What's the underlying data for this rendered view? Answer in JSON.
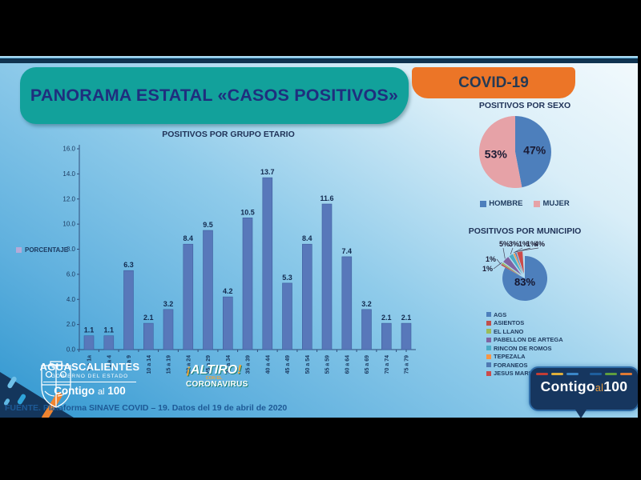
{
  "header": {
    "title": "PANORAMA ESTATAL «CASOS POSITIVOS»",
    "covid_label": "COVID-19"
  },
  "footer": {
    "source": "FUENTE. Plataforma SINAVE COVID – 19. Datos del 19 de abril de 2020"
  },
  "logos": {
    "gobierno": {
      "name": "AGUASCALIENTES",
      "subtitle": "GOBIERNO DEL ESTADO",
      "slogan_contigo": "Contigo",
      "slogan_al": "al",
      "slogan_100": "100"
    },
    "altiro": {
      "open_mark": "¡",
      "word": "ALTIRO",
      "close_mark": "!",
      "line2": "CON EL",
      "line3": "CORONAVIRUS"
    },
    "badge": {
      "contigo": "Contigo",
      "al": "al",
      "hundred": "100",
      "dash_colors": [
        "#c33d35",
        "#dfaf3a",
        "#3b87c8",
        "#1f5f9e",
        "#5f9e3f",
        "#df7a35"
      ]
    }
  },
  "chart_data": [
    {
      "type": "bar",
      "title": "POSITIVOS POR GRUPO ETARIO",
      "legend_label": "PORCENTAJE",
      "legend_swatch_color": "#b5aad8",
      "categories": [
        "< a 1a",
        "1 a 4",
        "5 a 9",
        "10 a 14",
        "15 a 19",
        "20 a 24",
        "25 a 29",
        "30 a 34",
        "35 a 39",
        "40 a 44",
        "45 a 49",
        "50 a 54",
        "55 a 59",
        "60 a 64",
        "65 a 69",
        "70 a 74",
        "75 a 79"
      ],
      "values": [
        1.1,
        1.1,
        6.3,
        2.1,
        3.2,
        8.4,
        9.5,
        4.2,
        10.5,
        13.7,
        5.3,
        8.4,
        11.6,
        7.4,
        3.2,
        2.1,
        2.1
      ],
      "xlabel": "",
      "ylabel": "",
      "ylim": [
        0,
        16
      ],
      "ytick_step": 2,
      "grid": false,
      "bar_color": "#5878ba",
      "bar_edge_color": "#3f5f9e"
    },
    {
      "type": "pie",
      "title": "POSITIVOS POR SEXO",
      "legend_position": "bottom",
      "slices": [
        {
          "label": "HOMBRE",
          "value": 47,
          "display": "47%",
          "color": "#4d7fbc"
        },
        {
          "label": "MUJER",
          "value": 53,
          "display": "53%",
          "color": "#e6a2a7"
        }
      ]
    },
    {
      "type": "pie",
      "title": "POSITIVOS POR MUNICIPIO",
      "legend_position": "bottom",
      "slices": [
        {
          "label": "AGS",
          "value": 83,
          "display": "83%",
          "color": "#4d7fbc"
        },
        {
          "label": "ASIENTOS",
          "value": 1,
          "display": "1%",
          "color": "#c0504d"
        },
        {
          "label": "EL LLANO",
          "value": 1,
          "display": "1%",
          "color": "#9bbb59"
        },
        {
          "label": "PABELLON DE ARTEGA",
          "value": 5,
          "display": "5%",
          "color": "#8064a2"
        },
        {
          "label": "RINCON DE ROMOS",
          "value": 3,
          "display": "3%",
          "color": "#4bacc6"
        },
        {
          "label": "TEPEZALA",
          "value": 1,
          "display": "1%",
          "color": "#f79646"
        },
        {
          "label": "FORANEOS",
          "value": 1,
          "display": "1%",
          "color": "#5079b3"
        },
        {
          "label": "JESUS MARIA",
          "value": 4,
          "display": "4%",
          "color": "#cc4b4b"
        }
      ]
    }
  ]
}
